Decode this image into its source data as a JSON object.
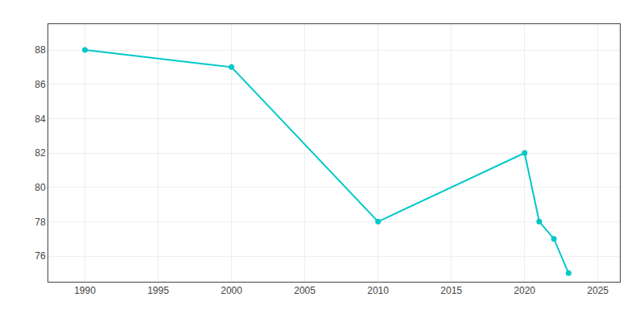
{
  "chart_data": {
    "type": "line",
    "x": [
      1990,
      2000,
      2010,
      2020,
      2021,
      2022,
      2023
    ],
    "values": [
      88,
      87,
      78,
      82,
      78,
      77,
      75
    ],
    "color": "#00C8C8",
    "marker": "circle",
    "xlim": [
      1987.5,
      2026.5
    ],
    "ylim": [
      74.5,
      89.5
    ],
    "xticks": [
      1990,
      1995,
      2000,
      2005,
      2010,
      2015,
      2020,
      2025
    ],
    "yticks": [
      76,
      78,
      80,
      82,
      84,
      86,
      88
    ],
    "grid": true
  }
}
